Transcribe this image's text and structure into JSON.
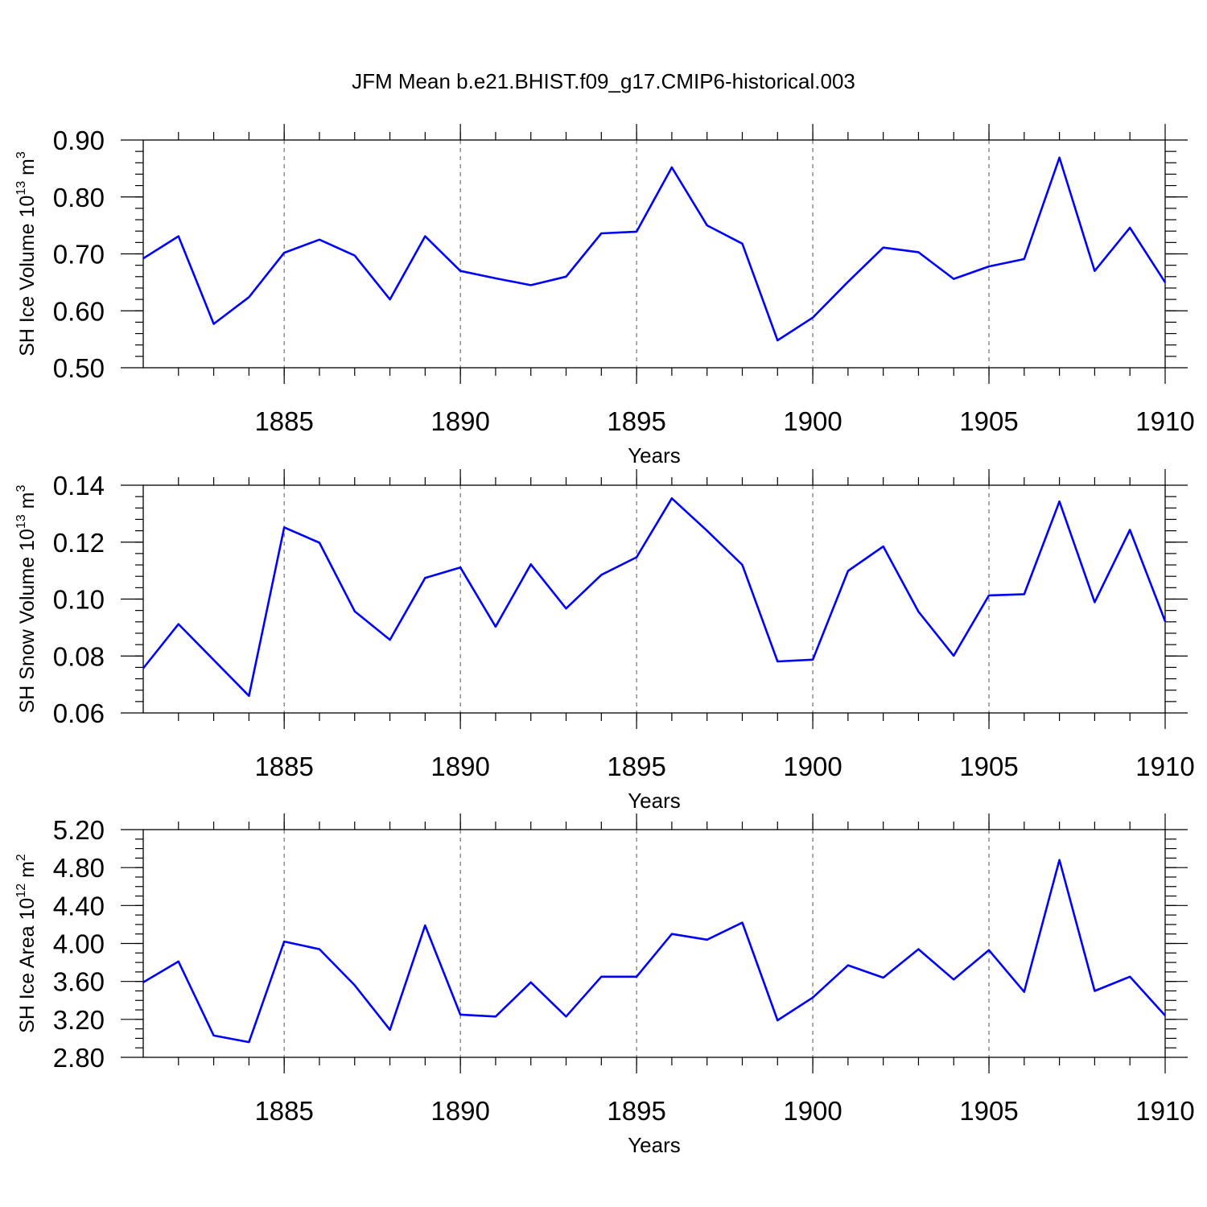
{
  "title": "JFM Mean b.e21.BHIST.f09_g17.CMIP6-historical.003",
  "chart_data": [
    {
      "type": "line",
      "ylabel": "SH Ice Volume 10",
      "ylabel_exp": "13",
      "ylabel_unit": " m",
      "ylabel_unit_exp": "3",
      "xlabel": "Years",
      "xlim": [
        1881,
        1910
      ],
      "ylim": [
        0.5,
        0.9
      ],
      "ytick_values": [
        0.5,
        0.6,
        0.7,
        0.8,
        0.9
      ],
      "yticks": [
        "0.50",
        "0.60",
        "0.70",
        "0.80",
        "0.90"
      ],
      "yminor_step": 0.02,
      "xtick_values": [
        1885,
        1890,
        1895,
        1900,
        1905,
        1910
      ],
      "xticks": [
        "1885",
        "1890",
        "1895",
        "1900",
        "1905",
        "1910"
      ],
      "x": [
        1881,
        1882,
        1883,
        1884,
        1885,
        1886,
        1887,
        1888,
        1889,
        1890,
        1891,
        1892,
        1893,
        1894,
        1895,
        1896,
        1897,
        1898,
        1899,
        1900,
        1901,
        1902,
        1903,
        1904,
        1905,
        1906,
        1907,
        1908,
        1909,
        1910
      ],
      "series": [
        {
          "name": "SH Ice Volume",
          "color": "#0000ff",
          "values": [
            0.692,
            0.731,
            0.577,
            0.624,
            0.702,
            0.725,
            0.697,
            0.62,
            0.731,
            0.67,
            0.657,
            0.645,
            0.66,
            0.736,
            0.739,
            0.852,
            0.75,
            0.718,
            0.548,
            0.588,
            0.651,
            0.711,
            0.703,
            0.656,
            0.678,
            0.691,
            0.869,
            0.67,
            0.746,
            0.65
          ]
        }
      ]
    },
    {
      "type": "line",
      "ylabel": "SH Snow Volume 10",
      "ylabel_exp": "13",
      "ylabel_unit": " m",
      "ylabel_unit_exp": "3",
      "xlabel": "Years",
      "xlim": [
        1881,
        1910
      ],
      "ylim": [
        0.06,
        0.14
      ],
      "ytick_values": [
        0.06,
        0.08,
        0.1,
        0.12,
        0.14
      ],
      "yticks": [
        "0.06",
        "0.08",
        "0.10",
        "0.12",
        "0.14"
      ],
      "yminor_step": 0.004,
      "xtick_values": [
        1885,
        1890,
        1895,
        1900,
        1905,
        1910
      ],
      "xticks": [
        "1885",
        "1890",
        "1895",
        "1900",
        "1905",
        "1910"
      ],
      "x": [
        1881,
        1882,
        1883,
        1884,
        1885,
        1886,
        1887,
        1888,
        1889,
        1890,
        1891,
        1892,
        1893,
        1894,
        1895,
        1896,
        1897,
        1898,
        1899,
        1900,
        1901,
        1902,
        1903,
        1904,
        1905,
        1906,
        1907,
        1908,
        1909,
        1910
      ],
      "series": [
        {
          "name": "SH Snow Volume",
          "color": "#0000ff",
          "values": [
            0.0757,
            0.0912,
            0.0786,
            0.066,
            0.1252,
            0.1198,
            0.0957,
            0.0857,
            0.1074,
            0.1111,
            0.0903,
            0.1122,
            0.0967,
            0.1085,
            0.1147,
            0.1354,
            0.124,
            0.112,
            0.0781,
            0.0787,
            0.1099,
            0.1185,
            0.0956,
            0.0801,
            0.1013,
            0.1017,
            0.1343,
            0.0989,
            0.1243,
            0.0922
          ]
        }
      ]
    },
    {
      "type": "line",
      "ylabel": "SH Ice Area 10",
      "ylabel_exp": "12",
      "ylabel_unit": " m",
      "ylabel_unit_exp": "2",
      "xlabel": "Years",
      "xlim": [
        1881,
        1910
      ],
      "ylim": [
        2.8,
        5.2
      ],
      "ytick_values": [
        2.8,
        3.2,
        3.6,
        4.0,
        4.4,
        4.8,
        5.2
      ],
      "yticks": [
        "2.80",
        "3.20",
        "3.60",
        "4.00",
        "4.40",
        "4.80",
        "5.20"
      ],
      "yminor_step": 0.1,
      "xtick_values": [
        1885,
        1890,
        1895,
        1900,
        1905,
        1910
      ],
      "xticks": [
        "1885",
        "1890",
        "1895",
        "1900",
        "1905",
        "1910"
      ],
      "x": [
        1881,
        1882,
        1883,
        1884,
        1885,
        1886,
        1887,
        1888,
        1889,
        1890,
        1891,
        1892,
        1893,
        1894,
        1895,
        1896,
        1897,
        1898,
        1899,
        1900,
        1901,
        1902,
        1903,
        1904,
        1905,
        1906,
        1907,
        1908,
        1909,
        1910
      ],
      "series": [
        {
          "name": "SH Ice Area",
          "color": "#0000ff",
          "values": [
            3.59,
            3.81,
            3.03,
            2.96,
            4.02,
            3.94,
            3.56,
            3.09,
            4.19,
            3.25,
            3.23,
            3.59,
            3.23,
            3.65,
            3.65,
            4.1,
            4.04,
            4.22,
            3.19,
            3.43,
            3.77,
            3.64,
            3.94,
            3.62,
            3.93,
            3.49,
            4.88,
            3.5,
            3.65,
            3.24
          ]
        }
      ]
    }
  ]
}
